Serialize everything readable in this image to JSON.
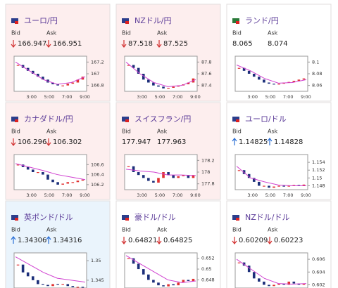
{
  "bid_label": "Bid",
  "ask_label": "Ask",
  "time_labels": [
    "3:00",
    "5:00",
    "7:00",
    "9:00"
  ],
  "cards": [
    {
      "title": "ユーロ/円",
      "bid": "166.947",
      "ask": "166.951",
      "trend": "down",
      "background": "#fdeeee",
      "ylim": [
        166.7,
        167.3
      ],
      "yticks": [
        166.8,
        167,
        167.2
      ],
      "values": [
        167.15,
        167.1,
        167.05,
        167.0,
        166.95,
        166.9,
        166.85,
        166.82,
        166.8,
        166.8,
        166.83,
        166.85,
        166.9,
        166.95
      ],
      "ma": [
        167.2,
        167.05,
        166.9,
        166.82,
        166.85,
        166.95
      ]
    },
    {
      "title": "NZドル/円",
      "bid": "87.518",
      "ask": "87.525",
      "trend": "down",
      "background": "#fdeeee",
      "ylim": [
        87.3,
        87.9
      ],
      "yticks": [
        87.4,
        87.6,
        87.8
      ],
      "values": [
        87.75,
        87.7,
        87.6,
        87.5,
        87.45,
        87.4,
        87.38,
        87.35,
        87.36,
        87.38,
        87.4,
        87.42,
        87.45,
        87.52
      ],
      "ma": [
        87.8,
        87.6,
        87.45,
        87.38,
        87.4,
        87.5
      ]
    },
    {
      "title": "ランド/円",
      "bid": "8.065",
      "ask": "8.074",
      "trend": null,
      "background": "#ffffff",
      "ylim": [
        8.05,
        8.11
      ],
      "yticks": [
        8.06,
        8.08,
        8.1
      ],
      "values": [
        8.09,
        8.085,
        8.08,
        8.075,
        8.07,
        8.065,
        8.063,
        8.062,
        8.063,
        8.065,
        8.066,
        8.068,
        8.07,
        8.072
      ],
      "ma": [
        8.095,
        8.085,
        8.072,
        8.064,
        8.065,
        8.07
      ]
    },
    {
      "title": "カナダドル/円",
      "bid": "106.296",
      "ask": "106.302",
      "trend": "down",
      "background": "#fdeeee",
      "ylim": [
        106.1,
        106.8
      ],
      "yticks": [
        106.2,
        106.4,
        106.6
      ],
      "values": [
        106.6,
        106.55,
        106.5,
        106.45,
        106.45,
        106.4,
        106.3,
        106.25,
        106.2,
        106.22,
        106.25,
        106.25,
        106.28,
        106.3
      ],
      "ma": [
        106.62,
        106.55,
        106.48,
        106.4,
        106.35,
        106.3
      ]
    },
    {
      "title": "スイスフラン/円",
      "bid": "177.947",
      "ask": "177.963",
      "trend": null,
      "background": "#fdeeee",
      "ylim": [
        177.7,
        178.3
      ],
      "yticks": [
        177.8,
        178,
        178.2
      ],
      "values": [
        178.1,
        178.0,
        177.95,
        177.9,
        177.85,
        177.82,
        177.9,
        178.0,
        177.95,
        177.9,
        177.93,
        177.95,
        177.9,
        177.95
      ],
      "ma": [
        178.05,
        178.02,
        178.0,
        177.95,
        177.95,
        177.94
      ]
    },
    {
      "title": "ユーロ/ドル",
      "bid": "1.14825",
      "ask": "1.14828",
      "trend": "up",
      "background": "#ffffff",
      "ylim": [
        1.147,
        1.156
      ],
      "yticks": [
        1.148,
        1.15,
        1.152,
        1.154
      ],
      "values": [
        1.152,
        1.151,
        1.15,
        1.149,
        1.148,
        1.148,
        1.1475,
        1.1478,
        1.148,
        1.1478,
        1.148,
        1.1482,
        1.148,
        1.1483
      ],
      "ma": [
        1.153,
        1.15,
        1.149,
        1.1482,
        1.148,
        1.148
      ]
    },
    {
      "title": "英ポンド/ドル",
      "bid": "1.34306",
      "ask": "1.34316",
      "trend": "up",
      "background": "#eaf4fc",
      "ylim": [
        1.343,
        1.352
      ],
      "yticks": [
        1.345,
        1.35
      ],
      "values": [
        1.349,
        1.347,
        1.346,
        1.345,
        1.344,
        1.3438,
        1.3435,
        1.344,
        1.3438,
        1.344,
        1.3435,
        1.3432,
        1.3433,
        1.3432
      ],
      "ma": [
        1.351,
        1.349,
        1.347,
        1.3455,
        1.345,
        1.3445
      ]
    },
    {
      "title": "豪ドル/ドル",
      "bid": "0.64821",
      "ask": "0.64825",
      "trend": "down",
      "background": "#ffffff",
      "ylim": [
        0.6465,
        0.653
      ],
      "yticks": [
        0.648,
        0.65,
        0.652
      ],
      "values": [
        0.652,
        0.651,
        0.65,
        0.649,
        0.648,
        0.6475,
        0.647,
        0.6468,
        0.6472,
        0.647,
        0.6475,
        0.648,
        0.6478,
        0.6482
      ],
      "ma": [
        0.6525,
        0.651,
        0.6495,
        0.648,
        0.6475,
        0.6478
      ]
    },
    {
      "title": "NZドル/ドル",
      "bid": "0.60209",
      "ask": "0.60223",
      "trend": "down",
      "background": "#ffffff",
      "ylim": [
        0.6015,
        0.607
      ],
      "yticks": [
        0.602,
        0.604,
        0.606
      ],
      "values": [
        0.6055,
        0.605,
        0.604,
        0.603,
        0.6025,
        0.602,
        0.6018,
        0.602,
        0.6022,
        0.602,
        0.6025,
        0.6022,
        0.602,
        0.6022
      ],
      "ma": [
        0.606,
        0.6045,
        0.603,
        0.6022,
        0.6021,
        0.6022
      ]
    }
  ]
}
